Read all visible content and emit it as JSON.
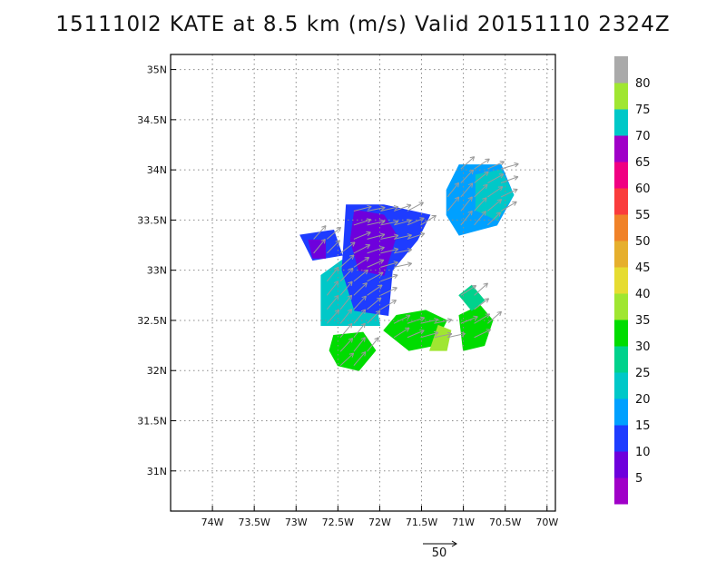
{
  "title": "151110I2 KATE at 8.5 km (m/s) Valid 20151110 2324Z",
  "chart_data": {
    "type": "heatmap",
    "title": "151110I2 KATE at 8.5 km (m/s) Valid 20151110 2324Z",
    "x_ticks": [
      "74W",
      "73.5W",
      "73W",
      "72.5W",
      "72W",
      "71.5W",
      "71W",
      "70.5W",
      "70W"
    ],
    "x_values": [
      -74,
      -73.5,
      -73,
      -72.5,
      -72,
      -71.5,
      -71,
      -70.5,
      -70
    ],
    "y_ticks": [
      "31N",
      "31.5N",
      "32N",
      "32.5N",
      "33N",
      "33.5N",
      "34N",
      "34.5N",
      "35N"
    ],
    "y_values": [
      31,
      31.5,
      32,
      32.5,
      33,
      33.5,
      34,
      34.5,
      35
    ],
    "xlim": [
      -74.5,
      -69.9
    ],
    "ylim": [
      30.6,
      35.15
    ],
    "grid": true,
    "colorbar": {
      "ticks": [
        "5",
        "10",
        "15",
        "20",
        "25",
        "30",
        "35",
        "40",
        "45",
        "50",
        "55",
        "60",
        "65",
        "70",
        "75",
        "80"
      ],
      "bounds": [
        0,
        5,
        10,
        15,
        20,
        25,
        30,
        35,
        40,
        45,
        50,
        55,
        60,
        65,
        70,
        75,
        80,
        85
      ],
      "colors": [
        "#a000c8",
        "#6e00dc",
        "#1e3cff",
        "#00a0ff",
        "#00c8c8",
        "#00d28c",
        "#00dc00",
        "#a0e632",
        "#e6dc32",
        "#e6af2d",
        "#f08228",
        "#fa3c3c",
        "#f00082",
        "#a000c8",
        "#00c8c8",
        "#a0e632",
        "#aaaaaa"
      ]
    },
    "reference_vector": {
      "label": "50",
      "value": 50,
      "unit": "m/s"
    },
    "regions": [
      {
        "speed": 20,
        "polygon": [
          [
            -72.7,
            32.45
          ],
          [
            -72.7,
            32.95
          ],
          [
            -72.45,
            33.1
          ],
          [
            -72.1,
            32.95
          ],
          [
            -72.0,
            32.45
          ]
        ]
      },
      {
        "speed": 10,
        "polygon": [
          [
            -72.45,
            33.0
          ],
          [
            -72.4,
            33.65
          ],
          [
            -71.95,
            33.65
          ],
          [
            -71.4,
            33.55
          ],
          [
            -71.55,
            33.3
          ],
          [
            -71.85,
            33.0
          ],
          [
            -71.9,
            32.55
          ],
          [
            -72.3,
            32.6
          ]
        ]
      },
      {
        "speed": 10,
        "polygon": [
          [
            -72.95,
            33.35
          ],
          [
            -72.55,
            33.4
          ],
          [
            -72.45,
            33.15
          ],
          [
            -72.8,
            33.1
          ]
        ]
      },
      {
        "speed": 8,
        "polygon": [
          [
            -72.3,
            33.6
          ],
          [
            -71.95,
            33.55
          ],
          [
            -71.8,
            33.35
          ],
          [
            -71.95,
            32.95
          ],
          [
            -72.25,
            33.0
          ],
          [
            -72.35,
            33.3
          ]
        ]
      },
      {
        "speed": 8,
        "polygon": [
          [
            -72.85,
            33.3
          ],
          [
            -72.65,
            33.3
          ],
          [
            -72.65,
            33.12
          ],
          [
            -72.8,
            33.12
          ]
        ]
      },
      {
        "speed": 15,
        "polygon": [
          [
            -71.2,
            33.8
          ],
          [
            -71.05,
            34.05
          ],
          [
            -70.55,
            34.05
          ],
          [
            -70.4,
            33.75
          ],
          [
            -70.6,
            33.45
          ],
          [
            -71.05,
            33.35
          ],
          [
            -71.2,
            33.55
          ]
        ]
      },
      {
        "speed": 20,
        "polygon": [
          [
            -70.85,
            33.95
          ],
          [
            -70.55,
            34.0
          ],
          [
            -70.4,
            33.75
          ],
          [
            -70.6,
            33.5
          ],
          [
            -70.85,
            33.6
          ]
        ]
      },
      {
        "speed": 30,
        "polygon": [
          [
            -72.6,
            32.2
          ],
          [
            -72.55,
            32.35
          ],
          [
            -72.2,
            32.38
          ],
          [
            -72.05,
            32.2
          ],
          [
            -72.25,
            32.0
          ],
          [
            -72.5,
            32.05
          ]
        ]
      },
      {
        "speed": 30,
        "polygon": [
          [
            -71.95,
            32.4
          ],
          [
            -71.8,
            32.55
          ],
          [
            -71.45,
            32.6
          ],
          [
            -71.2,
            32.5
          ],
          [
            -71.35,
            32.25
          ],
          [
            -71.65,
            32.2
          ]
        ]
      },
      {
        "speed": 30,
        "polygon": [
          [
            -71.05,
            32.55
          ],
          [
            -70.8,
            32.65
          ],
          [
            -70.65,
            32.5
          ],
          [
            -70.75,
            32.25
          ],
          [
            -71.0,
            32.2
          ]
        ]
      },
      {
        "speed": 25,
        "polygon": [
          [
            -71.05,
            32.75
          ],
          [
            -70.9,
            32.85
          ],
          [
            -70.75,
            32.7
          ],
          [
            -70.9,
            32.6
          ]
        ]
      },
      {
        "speed": 38,
        "polygon": [
          [
            -71.4,
            32.2
          ],
          [
            -71.3,
            32.45
          ],
          [
            -71.15,
            32.4
          ],
          [
            -71.2,
            32.2
          ]
        ]
      }
    ]
  }
}
